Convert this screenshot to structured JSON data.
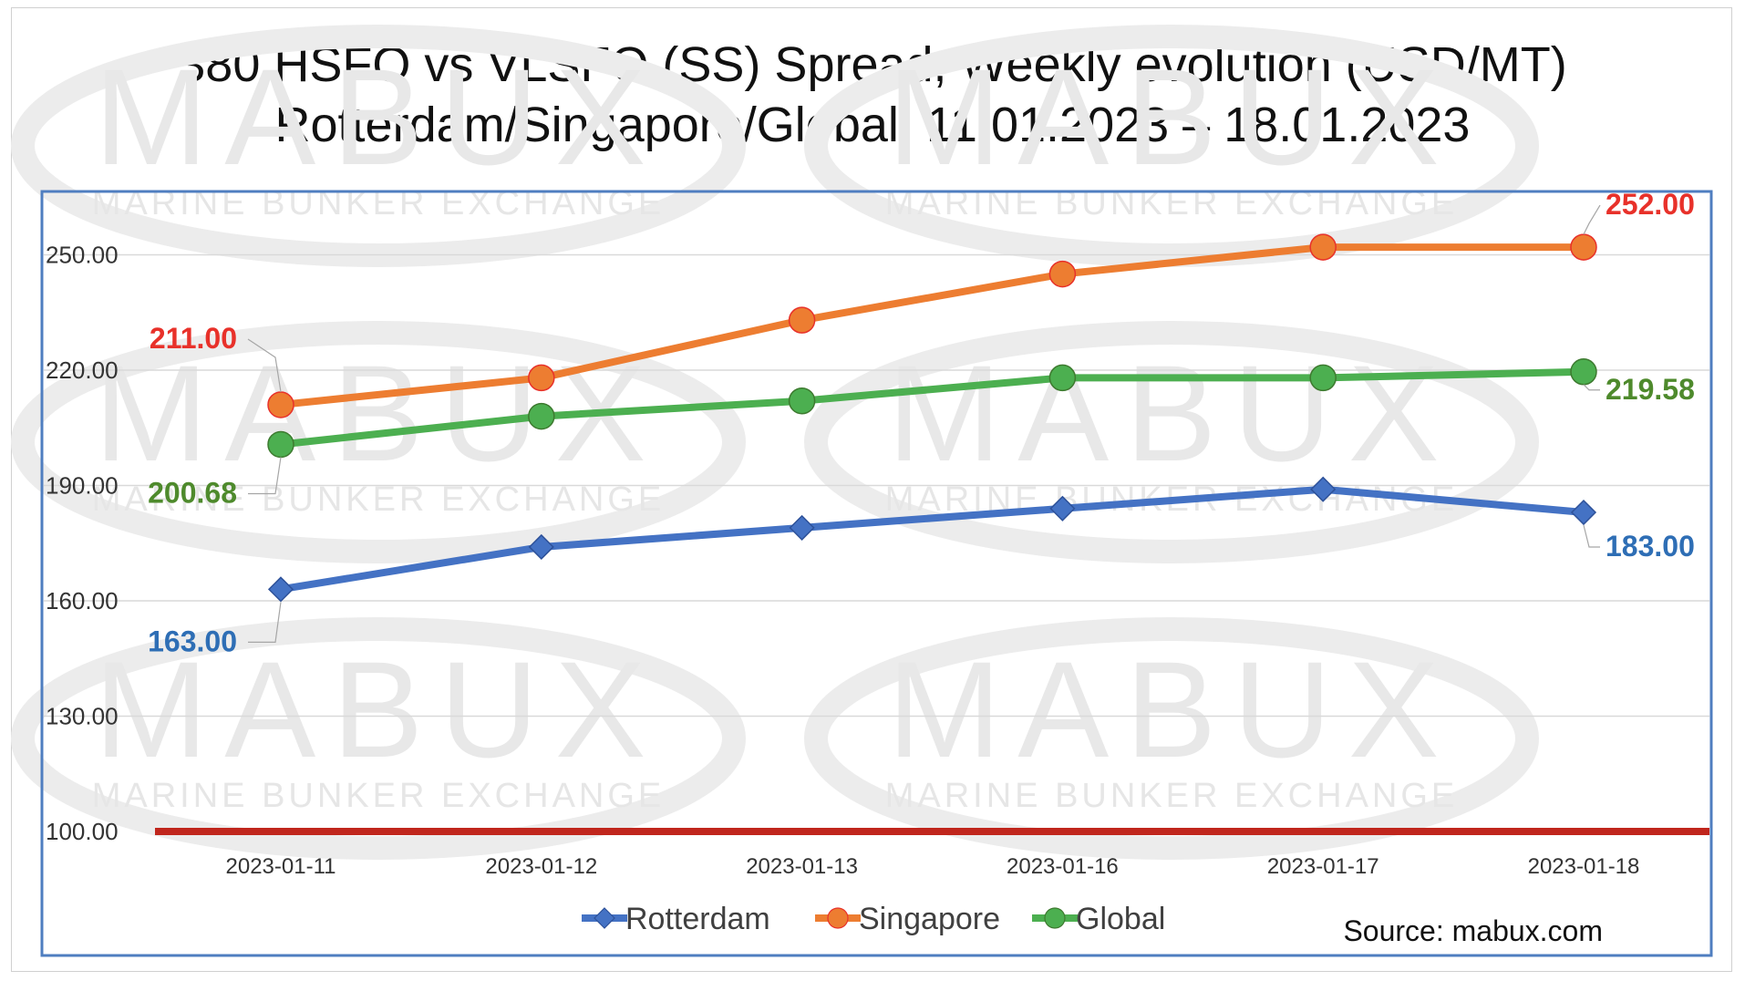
{
  "chart_data": {
    "type": "line",
    "title": "380 HSFO vs VLSFO (SS) Spread, Weekly evolution (USD/MT)",
    "subtitle": "Rotterdam/Singapore/Global, 11.01.2023 – 18.01.2023",
    "categories": [
      "2023-01-11",
      "2023-01-12",
      "2023-01-13",
      "2023-01-16",
      "2023-01-17",
      "2023-01-18"
    ],
    "yticks": [
      "100.00",
      "130.00",
      "160.00",
      "190.00",
      "220.00",
      "250.00"
    ],
    "ylim": [
      100,
      265
    ],
    "grid": true,
    "legend_position": "bottom",
    "series": [
      {
        "name": "Rotterdam",
        "values": [
          163,
          174,
          179,
          184,
          189,
          183
        ],
        "color": "#4472C4",
        "marker": "diamond"
      },
      {
        "name": "Singapore",
        "values": [
          211,
          218,
          233,
          245,
          252,
          252
        ],
        "color": "#ED7D31",
        "marker": "circle"
      },
      {
        "name": "Global",
        "values": [
          200.68,
          208,
          212,
          218,
          218,
          219.58
        ],
        "color": "#4CAF50",
        "marker": "circle"
      }
    ],
    "data_labels": [
      {
        "series": "Singapore",
        "index": 0,
        "text": "211.00",
        "color": "#E8312A"
      },
      {
        "series": "Singapore",
        "index": 5,
        "text": "252.00",
        "color": "#E8312A"
      },
      {
        "series": "Global",
        "index": 0,
        "text": "200.68",
        "color": "#4E8A2C"
      },
      {
        "series": "Global",
        "index": 5,
        "text": "219.58",
        "color": "#4E8A2C"
      },
      {
        "series": "Rotterdam",
        "index": 0,
        "text": "163.00",
        "color": "#2E6EB5"
      },
      {
        "series": "Rotterdam",
        "index": 5,
        "text": "183.00",
        "color": "#2E6EB5"
      }
    ],
    "reference_line": {
      "value": 100,
      "color": "#C0261D"
    },
    "source": "Source: mabux.com"
  },
  "watermark": {
    "logo": "MABUX",
    "tagline": "MARINE BUNKER EXCHANGE"
  },
  "colors": {
    "plot_border": "#4F7EC0",
    "grid": "#D9D9D9"
  }
}
